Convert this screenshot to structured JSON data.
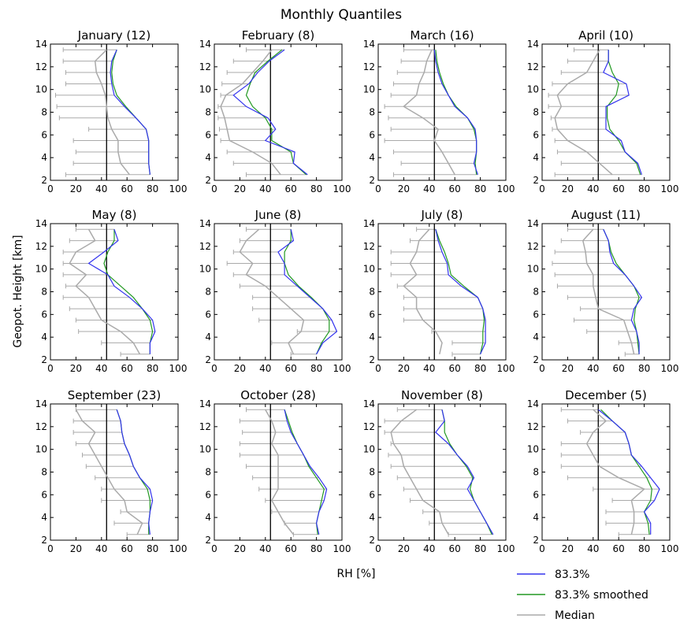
{
  "figure": {
    "title": "Monthly Quantiles",
    "xlabel": "RH [%]",
    "ylabel": "Geopot. Height [km]"
  },
  "legend": {
    "placement": "bottom-right",
    "items": [
      {
        "label": "83.3%",
        "color": "#3333ee"
      },
      {
        "label": "83.3% smoothed",
        "color": "#229922"
      },
      {
        "label": "Median",
        "color": "#aaaaaa"
      }
    ]
  },
  "colors": {
    "q833": "#3333ee",
    "smoothed": "#229922",
    "median": "#aaaaaa",
    "vline": "#000000"
  },
  "chart_data": {
    "type": "line",
    "layout": "small-multiples 3x4",
    "xlim": [
      0,
      100
    ],
    "ylim": [
      2,
      14
    ],
    "xticks": [
      0,
      20,
      40,
      60,
      80,
      100
    ],
    "yticks": [
      2,
      4,
      6,
      8,
      10,
      12,
      14
    ],
    "reference_line_x": 44,
    "heights": [
      2.5,
      3.5,
      4.5,
      5.5,
      6.5,
      7.5,
      8.5,
      9.5,
      10.5,
      11.5,
      12.5,
      13.5
    ],
    "panels": [
      {
        "title": "January (12)",
        "q833": [
          78,
          77,
          77,
          77,
          75,
          67,
          58,
          50,
          48,
          47,
          48,
          52
        ],
        "smoothed": [
          78,
          77,
          77,
          77,
          75,
          67,
          59,
          52,
          49,
          48,
          49,
          52
        ],
        "median": [
          62,
          55,
          53,
          53,
          48,
          45,
          44,
          43,
          40,
          36,
          35,
          44
        ],
        "low": [
          12,
          18,
          20,
          18,
          30,
          7,
          5,
          4,
          12,
          12,
          10,
          10
        ]
      },
      {
        "title": "February (8)",
        "q833": [
          73,
          62,
          63,
          40,
          48,
          42,
          25,
          15,
          27,
          34,
          43,
          55
        ],
        "smoothed": [
          72,
          62,
          60,
          45,
          45,
          40,
          30,
          25,
          28,
          32,
          42,
          53
        ],
        "median": [
          52,
          45,
          30,
          12,
          10,
          8,
          5,
          9,
          22,
          30,
          38,
          45
        ],
        "low": [
          25,
          15,
          10,
          5,
          4,
          3,
          3,
          5,
          6,
          10,
          15,
          25
        ]
      },
      {
        "title": "March (16)",
        "q833": [
          78,
          75,
          77,
          77,
          76,
          70,
          60,
          55,
          50,
          47,
          45,
          44
        ],
        "smoothed": [
          77,
          76,
          77,
          77,
          75,
          70,
          61,
          55,
          51,
          48,
          46,
          45
        ],
        "median": [
          60,
          55,
          50,
          44,
          47,
          35,
          20,
          30,
          32,
          36,
          38,
          42
        ],
        "low": [
          12,
          18,
          12,
          5,
          10,
          8,
          5,
          10,
          12,
          15,
          18,
          20
        ]
      },
      {
        "title": "April (10)",
        "q833": [
          78,
          75,
          65,
          62,
          50,
          50,
          50,
          68,
          66,
          48,
          52,
          52
        ],
        "smoothed": [
          77,
          74,
          65,
          60,
          53,
          51,
          51,
          58,
          60,
          55,
          52,
          52
        ],
        "median": [
          55,
          45,
          35,
          20,
          12,
          10,
          15,
          12,
          20,
          35,
          40,
          45
        ],
        "low": [
          10,
          15,
          12,
          10,
          8,
          7,
          5,
          5,
          8,
          15,
          20,
          25
        ]
      },
      {
        "title": "May (8)",
        "q833": [
          78,
          78,
          82,
          80,
          72,
          62,
          50,
          45,
          30,
          42,
          53,
          50
        ],
        "smoothed": [
          78,
          78,
          80,
          78,
          72,
          65,
          55,
          45,
          42,
          45,
          50,
          50
        ],
        "median": [
          70,
          65,
          55,
          40,
          35,
          30,
          20,
          28,
          15,
          20,
          35,
          30
        ],
        "low": [
          55,
          40,
          22,
          20,
          15,
          10,
          12,
          10,
          10,
          10,
          15,
          20
        ]
      },
      {
        "title": "June (8)",
        "q833": [
          80,
          85,
          96,
          92,
          85,
          75,
          65,
          55,
          55,
          50,
          62,
          60
        ],
        "smoothed": [
          80,
          84,
          90,
          90,
          85,
          76,
          66,
          58,
          55,
          55,
          60,
          60
        ],
        "median": [
          62,
          58,
          68,
          70,
          60,
          50,
          40,
          25,
          30,
          20,
          25,
          35
        ],
        "low": [
          60,
          45,
          65,
          35,
          30,
          30,
          20,
          15,
          10,
          15,
          20,
          25
        ]
      },
      {
        "title": "July (8)",
        "q833": [
          80,
          84,
          84,
          84,
          82,
          78,
          65,
          55,
          54,
          50,
          47,
          45
        ],
        "smoothed": [
          80,
          82,
          82,
          83,
          82,
          78,
          67,
          57,
          55,
          52,
          48,
          45
        ],
        "median": [
          48,
          50,
          45,
          35,
          30,
          30,
          20,
          30,
          25,
          30,
          32,
          40
        ],
        "low": [
          58,
          58,
          42,
          20,
          20,
          20,
          15,
          10,
          10,
          10,
          25,
          30
        ]
      },
      {
        "title": "August (11)",
        "q833": [
          76,
          76,
          74,
          70,
          72,
          78,
          72,
          65,
          56,
          53,
          52,
          48
        ],
        "smoothed": [
          76,
          75,
          74,
          72,
          73,
          76,
          72,
          65,
          58,
          54,
          52,
          48
        ],
        "median": [
          72,
          70,
          67,
          64,
          44,
          42,
          40,
          40,
          35,
          34,
          32,
          40
        ],
        "low": [
          65,
          60,
          35,
          25,
          30,
          20,
          12,
          10,
          8,
          10,
          15,
          20
        ]
      },
      {
        "title": "September (23)",
        "q833": [
          78,
          77,
          78,
          80,
          78,
          70,
          65,
          62,
          58,
          56,
          55,
          52
        ],
        "smoothed": [
          77,
          77,
          78,
          78,
          76,
          70,
          65,
          62,
          58,
          56,
          55,
          52
        ],
        "median": [
          68,
          72,
          60,
          58,
          50,
          45,
          40,
          35,
          30,
          35,
          25,
          20
        ],
        "low": [
          60,
          50,
          55,
          40,
          40,
          35,
          28,
          25,
          20,
          18,
          18,
          20
        ]
      },
      {
        "title": "October (28)",
        "q833": [
          82,
          80,
          82,
          86,
          88,
          82,
          75,
          70,
          65,
          60,
          57,
          55
        ],
        "smoothed": [
          81,
          80,
          82,
          84,
          86,
          80,
          74,
          70,
          65,
          61,
          58,
          55
        ],
        "median": [
          62,
          55,
          50,
          45,
          50,
          50,
          50,
          50,
          45,
          48,
          45,
          40
        ],
        "low": [
          62,
          55,
          45,
          40,
          35,
          30,
          25,
          20,
          20,
          22,
          20,
          25
        ]
      },
      {
        "title": "November (8)",
        "q833": [
          90,
          85,
          80,
          75,
          70,
          75,
          70,
          62,
          55,
          45,
          52,
          50
        ],
        "smoothed": [
          89,
          85,
          80,
          75,
          72,
          74,
          69,
          62,
          56,
          52,
          52,
          50
        ],
        "median": [
          55,
          50,
          48,
          35,
          30,
          25,
          20,
          18,
          12,
          10,
          18,
          30
        ],
        "low": [
          55,
          40,
          35,
          25,
          20,
          15,
          10,
          8,
          10,
          5,
          5,
          15
        ]
      },
      {
        "title": "December (5)",
        "q833": [
          85,
          85,
          80,
          88,
          92,
          85,
          78,
          70,
          68,
          65,
          55,
          44
        ],
        "smoothed": [
          84,
          83,
          80,
          85,
          86,
          82,
          76,
          70,
          68,
          65,
          55,
          46
        ],
        "median": [
          70,
          72,
          72,
          70,
          80,
          60,
          45,
          40,
          35,
          40,
          50,
          40
        ],
        "low": [
          60,
          50,
          50,
          55,
          40,
          20,
          15,
          15,
          15,
          30,
          20,
          15
        ]
      }
    ]
  }
}
